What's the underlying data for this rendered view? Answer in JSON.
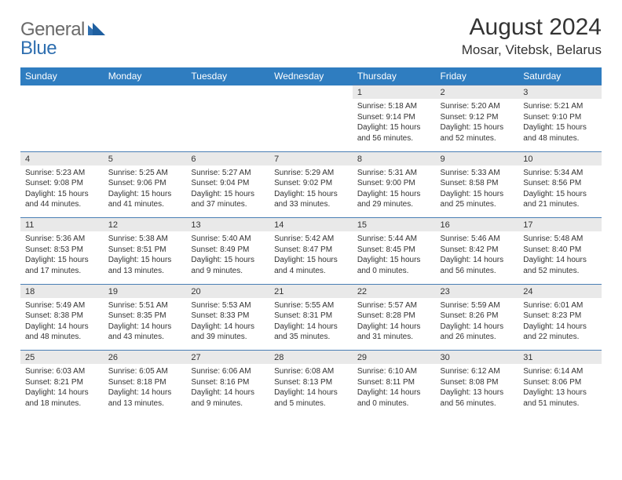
{
  "logo": {
    "part1": "General",
    "part2": "Blue"
  },
  "title": "August 2024",
  "location": "Mosar, Vitebsk, Belarus",
  "headers": [
    "Sunday",
    "Monday",
    "Tuesday",
    "Wednesday",
    "Thursday",
    "Friday",
    "Saturday"
  ],
  "colors": {
    "header_bg": "#2f7dc0",
    "header_text": "#ffffff",
    "daynum_bg": "#e9e9e9",
    "rule": "#4a7fb5",
    "text": "#333333",
    "logo_gray": "#6a6a6a",
    "logo_blue": "#2f6fb0"
  },
  "weeks": [
    [
      null,
      null,
      null,
      null,
      {
        "num": "1",
        "sunrise": "Sunrise: 5:18 AM",
        "sunset": "Sunset: 9:14 PM",
        "day1": "Daylight: 15 hours",
        "day2": "and 56 minutes."
      },
      {
        "num": "2",
        "sunrise": "Sunrise: 5:20 AM",
        "sunset": "Sunset: 9:12 PM",
        "day1": "Daylight: 15 hours",
        "day2": "and 52 minutes."
      },
      {
        "num": "3",
        "sunrise": "Sunrise: 5:21 AM",
        "sunset": "Sunset: 9:10 PM",
        "day1": "Daylight: 15 hours",
        "day2": "and 48 minutes."
      }
    ],
    [
      {
        "num": "4",
        "sunrise": "Sunrise: 5:23 AM",
        "sunset": "Sunset: 9:08 PM",
        "day1": "Daylight: 15 hours",
        "day2": "and 44 minutes."
      },
      {
        "num": "5",
        "sunrise": "Sunrise: 5:25 AM",
        "sunset": "Sunset: 9:06 PM",
        "day1": "Daylight: 15 hours",
        "day2": "and 41 minutes."
      },
      {
        "num": "6",
        "sunrise": "Sunrise: 5:27 AM",
        "sunset": "Sunset: 9:04 PM",
        "day1": "Daylight: 15 hours",
        "day2": "and 37 minutes."
      },
      {
        "num": "7",
        "sunrise": "Sunrise: 5:29 AM",
        "sunset": "Sunset: 9:02 PM",
        "day1": "Daylight: 15 hours",
        "day2": "and 33 minutes."
      },
      {
        "num": "8",
        "sunrise": "Sunrise: 5:31 AM",
        "sunset": "Sunset: 9:00 PM",
        "day1": "Daylight: 15 hours",
        "day2": "and 29 minutes."
      },
      {
        "num": "9",
        "sunrise": "Sunrise: 5:33 AM",
        "sunset": "Sunset: 8:58 PM",
        "day1": "Daylight: 15 hours",
        "day2": "and 25 minutes."
      },
      {
        "num": "10",
        "sunrise": "Sunrise: 5:34 AM",
        "sunset": "Sunset: 8:56 PM",
        "day1": "Daylight: 15 hours",
        "day2": "and 21 minutes."
      }
    ],
    [
      {
        "num": "11",
        "sunrise": "Sunrise: 5:36 AM",
        "sunset": "Sunset: 8:53 PM",
        "day1": "Daylight: 15 hours",
        "day2": "and 17 minutes."
      },
      {
        "num": "12",
        "sunrise": "Sunrise: 5:38 AM",
        "sunset": "Sunset: 8:51 PM",
        "day1": "Daylight: 15 hours",
        "day2": "and 13 minutes."
      },
      {
        "num": "13",
        "sunrise": "Sunrise: 5:40 AM",
        "sunset": "Sunset: 8:49 PM",
        "day1": "Daylight: 15 hours",
        "day2": "and 9 minutes."
      },
      {
        "num": "14",
        "sunrise": "Sunrise: 5:42 AM",
        "sunset": "Sunset: 8:47 PM",
        "day1": "Daylight: 15 hours",
        "day2": "and 4 minutes."
      },
      {
        "num": "15",
        "sunrise": "Sunrise: 5:44 AM",
        "sunset": "Sunset: 8:45 PM",
        "day1": "Daylight: 15 hours",
        "day2": "and 0 minutes."
      },
      {
        "num": "16",
        "sunrise": "Sunrise: 5:46 AM",
        "sunset": "Sunset: 8:42 PM",
        "day1": "Daylight: 14 hours",
        "day2": "and 56 minutes."
      },
      {
        "num": "17",
        "sunrise": "Sunrise: 5:48 AM",
        "sunset": "Sunset: 8:40 PM",
        "day1": "Daylight: 14 hours",
        "day2": "and 52 minutes."
      }
    ],
    [
      {
        "num": "18",
        "sunrise": "Sunrise: 5:49 AM",
        "sunset": "Sunset: 8:38 PM",
        "day1": "Daylight: 14 hours",
        "day2": "and 48 minutes."
      },
      {
        "num": "19",
        "sunrise": "Sunrise: 5:51 AM",
        "sunset": "Sunset: 8:35 PM",
        "day1": "Daylight: 14 hours",
        "day2": "and 43 minutes."
      },
      {
        "num": "20",
        "sunrise": "Sunrise: 5:53 AM",
        "sunset": "Sunset: 8:33 PM",
        "day1": "Daylight: 14 hours",
        "day2": "and 39 minutes."
      },
      {
        "num": "21",
        "sunrise": "Sunrise: 5:55 AM",
        "sunset": "Sunset: 8:31 PM",
        "day1": "Daylight: 14 hours",
        "day2": "and 35 minutes."
      },
      {
        "num": "22",
        "sunrise": "Sunrise: 5:57 AM",
        "sunset": "Sunset: 8:28 PM",
        "day1": "Daylight: 14 hours",
        "day2": "and 31 minutes."
      },
      {
        "num": "23",
        "sunrise": "Sunrise: 5:59 AM",
        "sunset": "Sunset: 8:26 PM",
        "day1": "Daylight: 14 hours",
        "day2": "and 26 minutes."
      },
      {
        "num": "24",
        "sunrise": "Sunrise: 6:01 AM",
        "sunset": "Sunset: 8:23 PM",
        "day1": "Daylight: 14 hours",
        "day2": "and 22 minutes."
      }
    ],
    [
      {
        "num": "25",
        "sunrise": "Sunrise: 6:03 AM",
        "sunset": "Sunset: 8:21 PM",
        "day1": "Daylight: 14 hours",
        "day2": "and 18 minutes."
      },
      {
        "num": "26",
        "sunrise": "Sunrise: 6:05 AM",
        "sunset": "Sunset: 8:18 PM",
        "day1": "Daylight: 14 hours",
        "day2": "and 13 minutes."
      },
      {
        "num": "27",
        "sunrise": "Sunrise: 6:06 AM",
        "sunset": "Sunset: 8:16 PM",
        "day1": "Daylight: 14 hours",
        "day2": "and 9 minutes."
      },
      {
        "num": "28",
        "sunrise": "Sunrise: 6:08 AM",
        "sunset": "Sunset: 8:13 PM",
        "day1": "Daylight: 14 hours",
        "day2": "and 5 minutes."
      },
      {
        "num": "29",
        "sunrise": "Sunrise: 6:10 AM",
        "sunset": "Sunset: 8:11 PM",
        "day1": "Daylight: 14 hours",
        "day2": "and 0 minutes."
      },
      {
        "num": "30",
        "sunrise": "Sunrise: 6:12 AM",
        "sunset": "Sunset: 8:08 PM",
        "day1": "Daylight: 13 hours",
        "day2": "and 56 minutes."
      },
      {
        "num": "31",
        "sunrise": "Sunrise: 6:14 AM",
        "sunset": "Sunset: 8:06 PM",
        "day1": "Daylight: 13 hours",
        "day2": "and 51 minutes."
      }
    ]
  ]
}
